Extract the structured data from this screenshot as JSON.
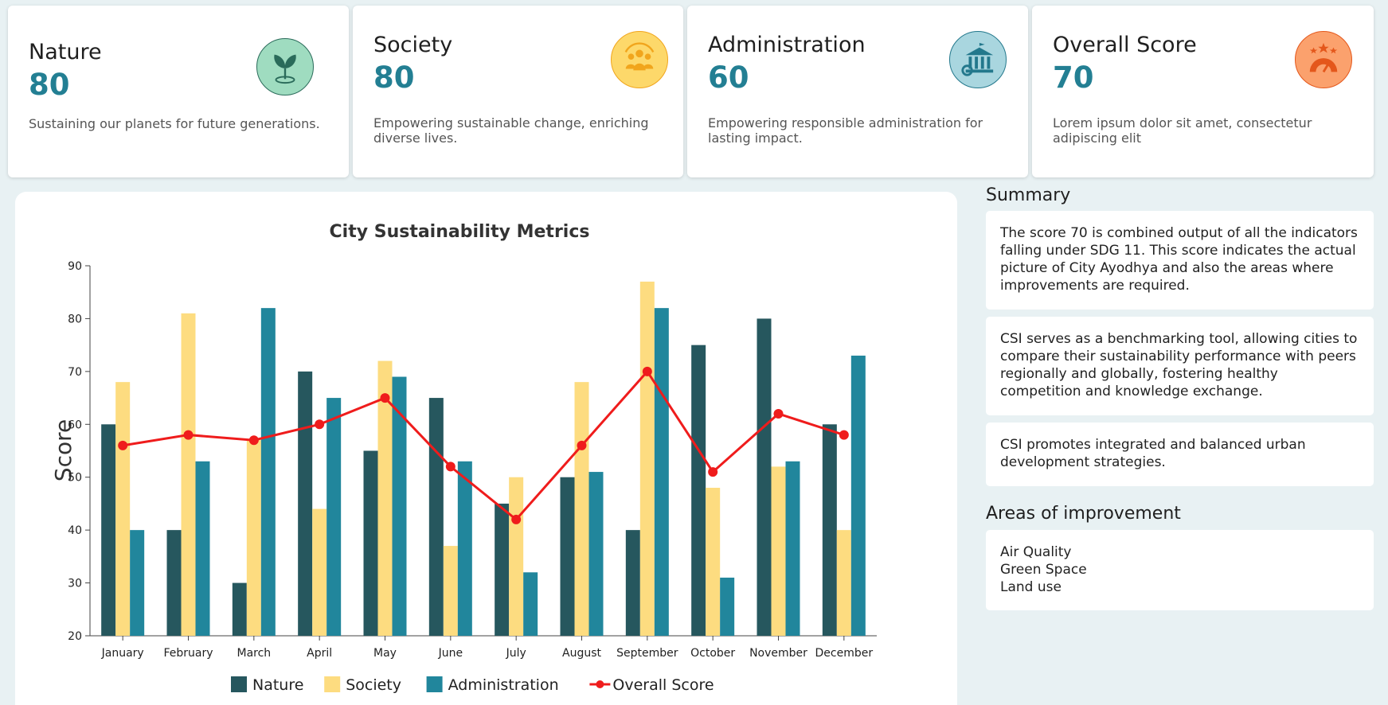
{
  "cards": [
    {
      "title": "Nature",
      "value": "80",
      "desc": "Sustaining our planets for future generations.",
      "icon": "leaf-icon",
      "icon_bg": "#9fdcc0",
      "icon_color": "#2a6b5a"
    },
    {
      "title": "Society",
      "value": "80",
      "desc": "Empowering sustainable change, enriching diverse lives.",
      "icon": "people-icon",
      "icon_bg": "#fdd86a",
      "icon_color": "#f1a51c"
    },
    {
      "title": "Administration",
      "value": "60",
      "desc": "Empowering responsible administration for lasting impact.",
      "icon": "government-building-icon",
      "icon_bg": "#a9d6df",
      "icon_color": "#23788c"
    },
    {
      "title": "Overall Score",
      "value": "70",
      "desc": "Lorem ipsum dolor sit amet, consectetur adipiscing elit",
      "icon": "rating-gauge-icon",
      "icon_bg": "#fba16d",
      "icon_color": "#e4571b"
    }
  ],
  "summary": {
    "heading": "Summary",
    "paragraphs": [
      "The score 70 is combined output of all the indicators falling under SDG 11. This score indicates the actual picture of City Ayodhya and also the areas where improvements are required.",
      "CSI serves as a benchmarking tool, allowing cities to compare their sustainability performance with peers regionally and globally, fostering healthy competition and knowledge exchange.",
      "CSI promotes integrated and balanced urban development strategies."
    ]
  },
  "improvement": {
    "heading": "Areas of improvement",
    "items": [
      "Air Quality",
      "Green Space",
      "Land use"
    ]
  },
  "chart_data": {
    "type": "bar",
    "title": "City Sustainability Metrics",
    "xlabel": "",
    "ylabel": "Score",
    "ylim": [
      20,
      90
    ],
    "yticks": [
      "20",
      "30",
      "40",
      "50",
      "60",
      "70",
      "80",
      "90"
    ],
    "grid": false,
    "legend_position": "bottom",
    "categories": [
      "January",
      "February",
      "March",
      "April",
      "May",
      "June",
      "July",
      "August",
      "September",
      "October",
      "November",
      "December"
    ],
    "series": [
      {
        "name": "Nature",
        "type": "bar",
        "color": "#26575e",
        "values": [
          60,
          40,
          30,
          70,
          55,
          65,
          45,
          50,
          40,
          75,
          80,
          60
        ]
      },
      {
        "name": "Society",
        "type": "bar",
        "color": "#fddc80",
        "values": [
          68,
          81,
          57,
          44,
          72,
          37,
          50,
          68,
          87,
          48,
          52,
          40
        ]
      },
      {
        "name": "Administration",
        "type": "bar",
        "color": "#21869c",
        "values": [
          40,
          53,
          82,
          65,
          69,
          53,
          32,
          51,
          82,
          31,
          53,
          73
        ]
      },
      {
        "name": "Overall Score",
        "type": "line",
        "color": "#ef1c1c",
        "values": [
          56,
          58,
          57,
          60,
          65,
          52,
          42,
          56,
          70,
          51,
          62,
          58
        ]
      }
    ]
  }
}
